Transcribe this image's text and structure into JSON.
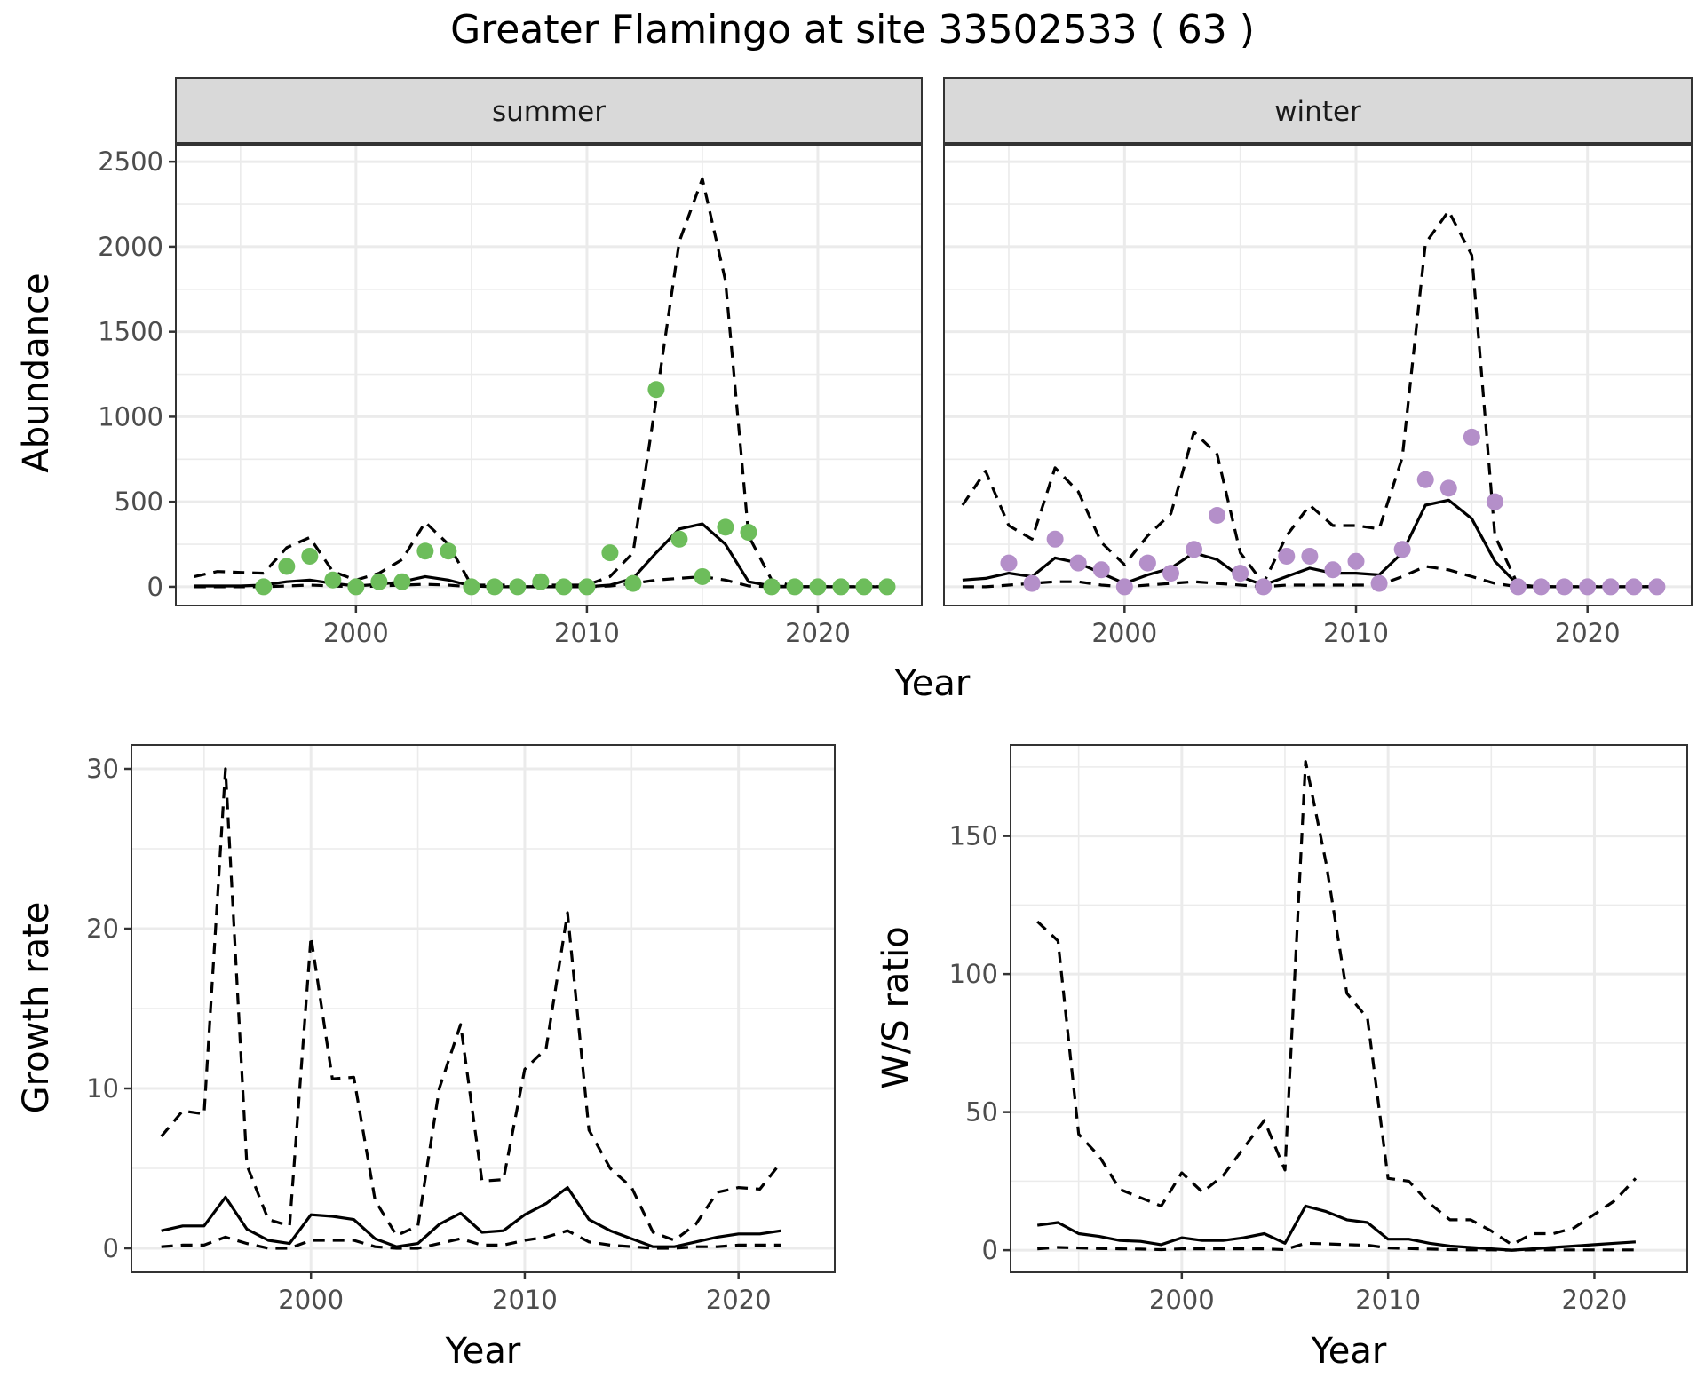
{
  "title": "Greater Flamingo at site 33502533 ( 63 )",
  "colors": {
    "summer_points": "#6dbd5b",
    "winter_points": "#b48fc9",
    "lines": "#000000",
    "grid": "#ebebeb",
    "strip_bg": "#d9d9d9"
  },
  "chart_data": [
    {
      "id": "abundance-summer",
      "type": "line+scatter",
      "facet": "summer",
      "xlabel": "Year",
      "ylabel": "Abundance",
      "xticks": [
        2000,
        2010,
        2020
      ],
      "yticks": [
        0,
        500,
        1000,
        1500,
        2000,
        2500
      ],
      "xlim": [
        1992.2,
        2024.5
      ],
      "ylim": [
        -110,
        2600
      ],
      "grid": true,
      "line_years": [
        1993,
        1994,
        1995,
        1996,
        1997,
        1998,
        1999,
        2000,
        2001,
        2002,
        2003,
        2004,
        2005,
        2006,
        2007,
        2008,
        2009,
        2010,
        2011,
        2012,
        2013,
        2014,
        2015,
        2016,
        2017,
        2018,
        2019,
        2020,
        2021,
        2022,
        2023
      ],
      "series": [
        {
          "name": "upper",
          "style": "dashed",
          "values": [
            60,
            90,
            85,
            80,
            230,
            290,
            90,
            40,
            80,
            160,
            380,
            250,
            10,
            10,
            10,
            10,
            10,
            10,
            60,
            200,
            1100,
            2030,
            2400,
            1800,
            300,
            40,
            0,
            0,
            0,
            0,
            0
          ]
        },
        {
          "name": "estimate",
          "style": "solid",
          "values": [
            5,
            5,
            5,
            10,
            30,
            40,
            20,
            5,
            15,
            30,
            60,
            40,
            5,
            0,
            0,
            0,
            0,
            0,
            10,
            50,
            200,
            340,
            370,
            250,
            30,
            5,
            0,
            0,
            0,
            0,
            0
          ]
        },
        {
          "name": "lower",
          "style": "dashed",
          "values": [
            0,
            0,
            0,
            0,
            5,
            10,
            5,
            0,
            5,
            10,
            15,
            10,
            0,
            0,
            0,
            0,
            0,
            0,
            5,
            20,
            40,
            50,
            60,
            40,
            5,
            0,
            0,
            0,
            0,
            0,
            0
          ]
        }
      ],
      "points": {
        "years": [
          1996,
          1997,
          1998,
          1999,
          2000,
          2001,
          2002,
          2003,
          2004,
          2005,
          2006,
          2007,
          2008,
          2009,
          2010,
          2011,
          2012,
          2013,
          2014,
          2015,
          2016,
          2017,
          2018,
          2019,
          2020,
          2021,
          2022,
          2023
        ],
        "values": [
          0,
          120,
          180,
          40,
          0,
          30,
          30,
          210,
          210,
          0,
          0,
          0,
          30,
          0,
          0,
          200,
          20,
          1160,
          280,
          60,
          350,
          320,
          0,
          0,
          0,
          0,
          0,
          0
        ]
      }
    },
    {
      "id": "abundance-winter",
      "type": "line+scatter",
      "facet": "winter",
      "xlabel": "Year",
      "ylabel": "Abundance",
      "xticks": [
        2000,
        2010,
        2020
      ],
      "yticks": [
        0,
        500,
        1000,
        1500,
        2000,
        2500
      ],
      "xlim": [
        1992.2,
        2024.5
      ],
      "ylim": [
        -110,
        2600
      ],
      "grid": true,
      "line_years": [
        1993,
        1994,
        1995,
        1996,
        1997,
        1998,
        1999,
        2000,
        2001,
        2002,
        2003,
        2004,
        2005,
        2006,
        2007,
        2008,
        2009,
        2010,
        2011,
        2012,
        2013,
        2014,
        2015,
        2016,
        2017,
        2018,
        2019,
        2020,
        2021,
        2022,
        2023
      ],
      "series": [
        {
          "name": "upper",
          "style": "dashed",
          "values": [
            480,
            680,
            360,
            280,
            700,
            560,
            260,
            130,
            300,
            430,
            910,
            780,
            200,
            20,
            300,
            480,
            360,
            360,
            340,
            760,
            2020,
            2210,
            1950,
            300,
            10,
            0,
            0,
            0,
            0,
            0,
            0
          ]
        },
        {
          "name": "estimate",
          "style": "solid",
          "values": [
            40,
            50,
            80,
            60,
            170,
            140,
            80,
            20,
            70,
            110,
            200,
            160,
            60,
            10,
            60,
            110,
            80,
            80,
            70,
            200,
            480,
            510,
            400,
            150,
            10,
            0,
            0,
            0,
            0,
            0,
            0
          ]
        },
        {
          "name": "lower",
          "style": "dashed",
          "values": [
            0,
            0,
            10,
            20,
            30,
            30,
            10,
            0,
            10,
            20,
            30,
            20,
            10,
            0,
            10,
            10,
            10,
            10,
            10,
            60,
            120,
            100,
            60,
            20,
            0,
            0,
            0,
            0,
            0,
            0,
            0
          ]
        }
      ],
      "points": {
        "years": [
          1995,
          1996,
          1997,
          1998,
          1999,
          2000,
          2001,
          2002,
          2003,
          2004,
          2005,
          2006,
          2007,
          2008,
          2009,
          2010,
          2011,
          2012,
          2013,
          2014,
          2015,
          2016,
          2017,
          2018,
          2019,
          2020,
          2021,
          2022,
          2023
        ],
        "values": [
          140,
          20,
          280,
          140,
          100,
          0,
          140,
          80,
          220,
          420,
          80,
          0,
          180,
          180,
          100,
          150,
          20,
          220,
          630,
          580,
          880,
          500,
          0,
          0,
          0,
          0,
          0,
          0,
          0
        ]
      }
    },
    {
      "id": "growth-rate",
      "type": "line",
      "xlabel": "Year",
      "ylabel": "Growth rate",
      "xticks": [
        2000,
        2010,
        2020
      ],
      "yticks": [
        0,
        10,
        20,
        30
      ],
      "xlim": [
        1991.6,
        2024.5
      ],
      "ylim": [
        -1.5,
        31.5
      ],
      "grid": true,
      "line_years": [
        1993,
        1994,
        1995,
        1996,
        1997,
        1998,
        1999,
        2000,
        2001,
        2002,
        2003,
        2004,
        2005,
        2006,
        2007,
        2008,
        2009,
        2010,
        2011,
        2012,
        2013,
        2014,
        2015,
        2016,
        2017,
        2018,
        2019,
        2020,
        2021,
        2022
      ],
      "series": [
        {
          "name": "upper",
          "style": "dashed",
          "values": [
            7.0,
            8.6,
            8.4,
            30.0,
            5.2,
            1.8,
            1.4,
            19.5,
            10.6,
            10.7,
            3.0,
            0.8,
            1.4,
            10.0,
            14.0,
            4.2,
            4.3,
            11.2,
            12.5,
            21.0,
            7.4,
            5.0,
            3.8,
            1.0,
            0.5,
            1.5,
            3.5,
            3.8,
            3.7,
            5.4
          ]
        },
        {
          "name": "estimate",
          "style": "solid",
          "values": [
            1.1,
            1.4,
            1.4,
            3.2,
            1.2,
            0.5,
            0.3,
            2.1,
            2.0,
            1.8,
            0.6,
            0.1,
            0.3,
            1.5,
            2.2,
            1.0,
            1.1,
            2.1,
            2.8,
            3.8,
            1.8,
            1.1,
            0.6,
            0.1,
            0.1,
            0.4,
            0.7,
            0.9,
            0.9,
            1.1
          ]
        },
        {
          "name": "lower",
          "style": "dashed",
          "values": [
            0.1,
            0.2,
            0.2,
            0.7,
            0.3,
            0.0,
            0.0,
            0.5,
            0.5,
            0.5,
            0.1,
            0.0,
            0.0,
            0.3,
            0.6,
            0.2,
            0.2,
            0.5,
            0.7,
            1.1,
            0.4,
            0.2,
            0.1,
            0.0,
            0.0,
            0.1,
            0.1,
            0.2,
            0.2,
            0.2
          ]
        }
      ]
    },
    {
      "id": "ws-ratio",
      "type": "line",
      "xlabel": "Year",
      "ylabel": "W/S ratio",
      "xticks": [
        2000,
        2010,
        2020
      ],
      "yticks": [
        0,
        50,
        100,
        150
      ],
      "xlim": [
        1991.7,
        2024.5
      ],
      "ylim": [
        -8,
        183
      ],
      "grid": true,
      "line_years": [
        1993,
        1994,
        1995,
        1996,
        1997,
        1998,
        1999,
        2000,
        2001,
        2002,
        2003,
        2004,
        2005,
        2006,
        2007,
        2008,
        2009,
        2010,
        2011,
        2012,
        2013,
        2014,
        2015,
        2016,
        2017,
        2018,
        2019,
        2020,
        2021,
        2022
      ],
      "series": [
        {
          "name": "upper",
          "style": "dashed",
          "values": [
            119,
            112,
            42,
            34,
            22,
            19,
            16,
            28,
            21,
            27,
            37,
            47,
            29,
            177,
            140,
            93,
            84,
            26,
            25,
            17,
            11,
            11,
            7,
            2,
            6,
            6,
            8,
            13,
            18,
            26
          ]
        },
        {
          "name": "estimate",
          "style": "solid",
          "values": [
            9,
            10,
            6,
            5,
            3.5,
            3.2,
            2,
            4.5,
            3.5,
            3.5,
            4.5,
            6,
            2.5,
            16,
            14,
            11,
            10,
            4,
            4,
            2.5,
            1.5,
            1,
            0.5,
            0,
            0.5,
            1,
            1.5,
            2,
            2.5,
            3
          ]
        },
        {
          "name": "lower",
          "style": "dashed",
          "values": [
            0.5,
            1,
            0.8,
            0.6,
            0.5,
            0.4,
            0.2,
            0.5,
            0.5,
            0.5,
            0.5,
            0.5,
            0.2,
            2.5,
            2.3,
            2,
            1.8,
            0.8,
            0.6,
            0.4,
            0.2,
            0.1,
            0.1,
            0,
            0.1,
            0.1,
            0.1,
            0.1,
            0.1,
            0.1
          ]
        }
      ]
    }
  ]
}
